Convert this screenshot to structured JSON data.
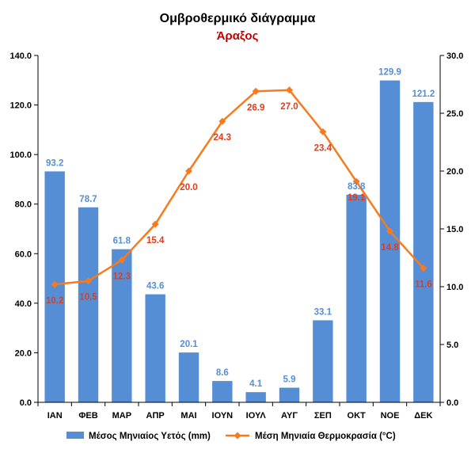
{
  "chart_data": {
    "type": "bar",
    "title": "Ομβροθερμικό διάγραμμα",
    "subtitle": "Άραξος",
    "categories": [
      "ΙΑΝ",
      "ΦΕΒ",
      "ΜΑΡ",
      "ΑΠΡ",
      "ΜΑΙ",
      "ΙΟΥΝ",
      "ΙΟΥΛ",
      "ΑΥΓ",
      "ΣΕΠ",
      "ΟΚΤ",
      "ΝΟΕ",
      "ΔΕΚ"
    ],
    "series": [
      {
        "name": "Μέσος Μηνιαίος Υετός (mm)",
        "type": "bar",
        "axis": "left",
        "color": "#558ED5",
        "label_color": "#558ED5",
        "values": [
          93.2,
          78.7,
          61.8,
          43.6,
          20.1,
          8.6,
          4.1,
          5.9,
          33.1,
          83.8,
          129.9,
          121.2
        ],
        "labels": [
          "93.2",
          "78.7",
          "61.8",
          "43.6",
          "20.1",
          "8.6",
          "4.1",
          "5.9",
          "33.1",
          "83.8",
          "129.9",
          "121.2"
        ]
      },
      {
        "name": "Μέση Μηνιαία Θερμοκρασία (°C)",
        "type": "line",
        "axis": "right",
        "color": "#F77B1E",
        "label_color": "#E03C1E",
        "values": [
          10.2,
          10.5,
          12.3,
          15.4,
          20.0,
          24.3,
          26.9,
          27.0,
          23.4,
          19.1,
          14.8,
          11.6
        ],
        "labels": [
          "10.2",
          "10.5",
          "12.3",
          "15.4",
          "20.0",
          "24.3",
          "26.9",
          "27.0",
          "23.4",
          "19.1",
          "14.8",
          "11.6"
        ]
      }
    ],
    "y_left": {
      "min": 0,
      "max": 140,
      "step": 20,
      "ticks": [
        "0.0",
        "20.0",
        "40.0",
        "60.0",
        "80.0",
        "100.0",
        "120.0",
        "140.0"
      ]
    },
    "y_right": {
      "min": 0,
      "max": 30,
      "step": 5,
      "ticks": [
        "0.0",
        "5.0",
        "10.0",
        "15.0",
        "20.0",
        "25.0",
        "30.0"
      ]
    },
    "grid": false,
    "legend_position": "bottom",
    "colors": {
      "title": "#000000",
      "subtitle": "#C00000",
      "axis": "#000000"
    }
  }
}
